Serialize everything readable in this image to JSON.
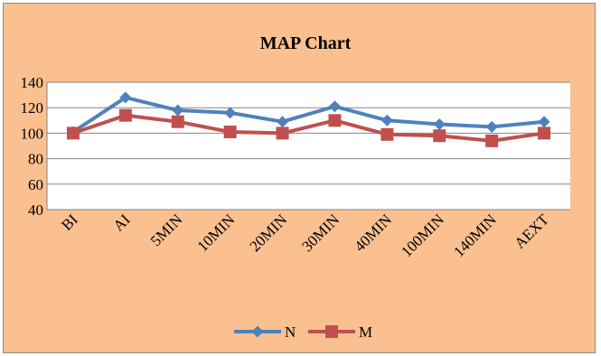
{
  "chart_data": {
    "type": "line",
    "title": "MAP Chart",
    "categories": [
      "BI",
      "AI",
      "5MIN",
      "10MIN",
      "20MIN",
      "30MIN",
      "40MIN",
      "100MIN",
      "140MIN",
      "AEXT"
    ],
    "series": [
      {
        "name": "N",
        "values": [
          101,
          128,
          118,
          116,
          109,
          121,
          110,
          107,
          105,
          109
        ],
        "color": "#4f81bd",
        "marker": "diamond"
      },
      {
        "name": "M",
        "values": [
          100,
          114,
          109,
          101,
          100,
          110,
          99,
          98,
          94,
          100
        ],
        "color": "#c0504d",
        "marker": "square"
      }
    ],
    "ylim": [
      40,
      140
    ],
    "yticks": [
      40,
      60,
      80,
      100,
      120,
      140
    ],
    "grid": true,
    "legend_position": "bottom",
    "background": "#fac090",
    "plot_background": "#ffffff"
  }
}
